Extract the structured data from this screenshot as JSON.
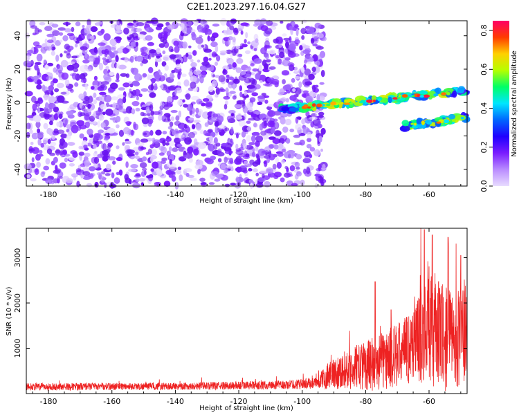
{
  "title": "C2E1.2023.297.16.04.G27",
  "chart_data": [
    {
      "type": "heatmap",
      "xlabel": "Height of straight line (km)",
      "ylabel": "Frequency (Hz)",
      "xlim": [
        -187,
        -48
      ],
      "ylim": [
        -50,
        49
      ],
      "xticks": [
        -180,
        -160,
        -140,
        -120,
        -100,
        -80,
        -60
      ],
      "yticks": [
        -40,
        -20,
        0,
        20,
        40
      ],
      "colorbar": {
        "label": "Normalized spectral amplitude",
        "range": [
          0.0,
          0.85
        ],
        "ticks": [
          0.0,
          0.2,
          0.4,
          0.6,
          0.8
        ],
        "colormap": [
          "#e8dcff",
          "#b98cff",
          "#7a1cff",
          "#1f00ff",
          "#0066ff",
          "#00e6ff",
          "#00ff66",
          "#b6ff00",
          "#ffd000",
          "#ff3b00",
          "#ff0066"
        ]
      },
      "noise_region": {
        "x_range": [
          -187,
          -93
        ],
        "freq_range": [
          -50,
          49
        ],
        "typical_amplitude": 0.05
      },
      "signal_tracks": [
        {
          "name": "upper track",
          "x_start": -107,
          "x_end": -48,
          "freq_start": -4,
          "freq_end": 7,
          "peak_amplitude": 0.82
        },
        {
          "name": "lower track",
          "x_start": -68,
          "x_end": -48,
          "freq_start": -14,
          "freq_end": -9,
          "peak_amplitude": 0.8
        }
      ]
    },
    {
      "type": "line",
      "xlabel": "Height of straight line (km)",
      "ylabel": "SNR (10 * v/v)",
      "xlim": [
        -187,
        -48
      ],
      "ylim": [
        0,
        3650
      ],
      "xticks": [
        -180,
        -160,
        -140,
        -120,
        -100,
        -80,
        -60
      ],
      "yticks": [
        1000,
        2000,
        3000
      ],
      "color": "#ee2222",
      "trend": [
        {
          "x": -187,
          "mean": 150,
          "spread": 160
        },
        {
          "x": -140,
          "mean": 160,
          "spread": 160
        },
        {
          "x": -105,
          "mean": 190,
          "spread": 200
        },
        {
          "x": -95,
          "mean": 240,
          "spread": 250
        },
        {
          "x": -92,
          "mean": 400,
          "spread": 600
        },
        {
          "x": -85,
          "mean": 550,
          "spread": 900
        },
        {
          "x": -75,
          "mean": 700,
          "spread": 1300
        },
        {
          "x": -68,
          "mean": 900,
          "spread": 1500
        },
        {
          "x": -64,
          "mean": 1200,
          "spread": 1900
        },
        {
          "x": -60,
          "mean": 1500,
          "spread": 2700
        },
        {
          "x": -55,
          "mean": 1200,
          "spread": 2300
        },
        {
          "x": -48,
          "mean": 1300,
          "spread": 2200
        }
      ],
      "peaks": [
        {
          "x": -77,
          "y": 2470
        },
        {
          "x": -61.5,
          "y": 3620
        },
        {
          "x": -59,
          "y": 3500
        },
        {
          "x": -54,
          "y": 3450
        },
        {
          "x": -50,
          "y": 3050
        },
        {
          "x": -72,
          "y": 1850
        }
      ]
    }
  ]
}
